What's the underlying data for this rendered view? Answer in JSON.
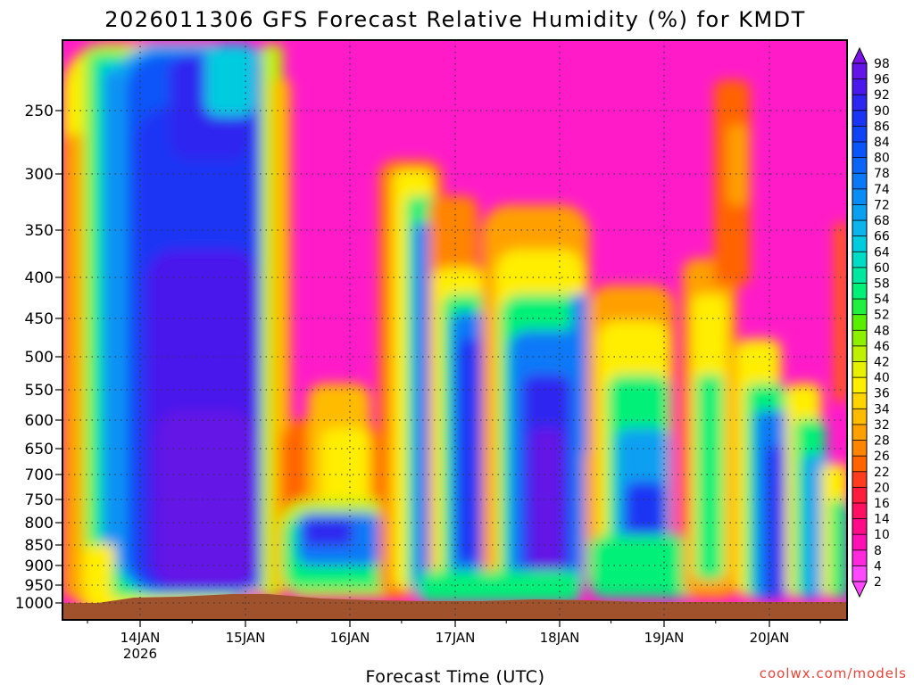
{
  "chart_data": {
    "type": "heatmap",
    "title": "2026011306 GFS Forecast Relative Humidity (%) for KMDT",
    "xlabel": "Forecast Time (UTC)",
    "ylabel": "",
    "x_ticks": [
      "14JAN",
      "15JAN",
      "16JAN",
      "17JAN",
      "18JAN",
      "19JAN",
      "20JAN"
    ],
    "x_subtick": "2026",
    "y_scale": "log-pressure",
    "y_ticks": [
      "250",
      "300",
      "350",
      "400",
      "450",
      "500",
      "550",
      "600",
      "650",
      "700",
      "750",
      "800",
      "850",
      "900",
      "950",
      "1000"
    ],
    "colorbar_labels": [
      "98",
      "96",
      "92",
      "90",
      "86",
      "84",
      "80",
      "78",
      "74",
      "72",
      "68",
      "66",
      "64",
      "60",
      "58",
      "54",
      "52",
      "48",
      "46",
      "42",
      "40",
      "36",
      "34",
      "32",
      "28",
      "26",
      "22",
      "20",
      "16",
      "14",
      "10",
      "8",
      "4",
      "2"
    ],
    "colorbar_colors": [
      "#7a12e8",
      "#6414e6",
      "#4a18ec",
      "#2d25f0",
      "#1a34f4",
      "#0f44f6",
      "#0a55f8",
      "#0a66f8",
      "#0a79f8",
      "#0a8cf6",
      "#0aa0f2",
      "#0ab4ec",
      "#00cce0",
      "#00ddc4",
      "#00e8a0",
      "#00f078",
      "#20f040",
      "#58f000",
      "#8cf000",
      "#bef000",
      "#e6f000",
      "#ffee00",
      "#ffd400",
      "#ffbb00",
      "#ffa000",
      "#ff8400",
      "#ff6400",
      "#ff3c1e",
      "#ff1c3c",
      "#ff1060",
      "#ff0a88",
      "#ff10b4",
      "#ff28dc",
      "#ff48ff"
    ],
    "grid": true,
    "terrain_color": "#a0522d",
    "legend": "colorbar-right"
  },
  "credit": "coolwx.com/models"
}
